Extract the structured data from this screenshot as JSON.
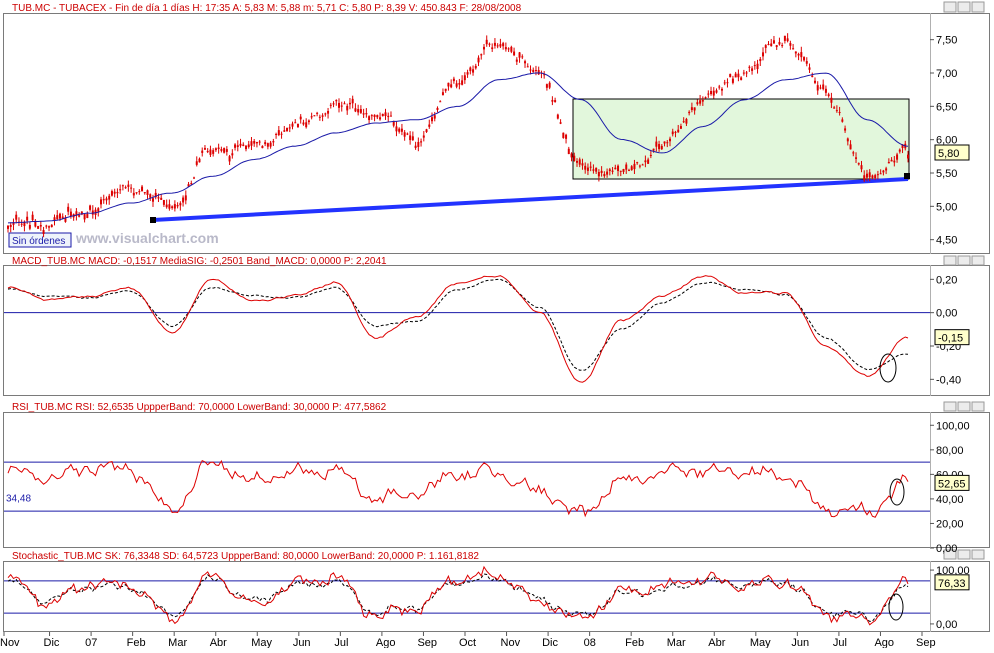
{
  "colors": {
    "price": "#dd0000",
    "mavg": "#1a1aa8",
    "trendline": "#2233ff",
    "box_fill": "#e2f7dc",
    "band": "#1a1aa8",
    "dashed": "#000000",
    "value_label_bg": "#ffffcc"
  },
  "panels": [
    {
      "id": "price",
      "header": "TUB.MC - TUBACEX - Fin de día 1 días  H: 17:35  A: 5,83  M: 5,88  m: 5,71  C: 5,80  P: 8,39  V: 450.843  F: 28/08/2008",
      "ticks": [
        "7,50",
        "7,00",
        "6,50",
        "6,00",
        "5,50",
        "5,00",
        "4,50"
      ],
      "current_label": "5,80",
      "sin_ordenes": "Sin órdenes",
      "watermark": "www.visualchart.com"
    },
    {
      "id": "macd",
      "header": "MACD_TUB.MC  MACD: -0,1517   MediaSIG: -0,2501   Band_MACD: 0,0000   P: 2,2041",
      "ticks": [
        "0,20",
        "0,00",
        "-0,20",
        "-0,40"
      ],
      "current_label": "-0,15"
    },
    {
      "id": "rsi",
      "header": "RSI_TUB.MC  RSI: 52,6535   UppperBand: 70,0000   LowerBand: 30,0000   P: 477,5862",
      "ticks": [
        "100,00",
        "80,00",
        "60,00",
        "40,00",
        "20,00",
        "0,00"
      ],
      "current_label": "52,65",
      "left_label": "34,48"
    },
    {
      "id": "stochastic",
      "header": "Stochastic_TUB.MC  SK: 76,3348   SD: 64,5723   UppperBand: 80,0000   LowerBand: 20,0000   P: 1.161,8182",
      "ticks": [
        "100,00",
        "0,00"
      ],
      "current_label": "76,33"
    }
  ],
  "x_labels": [
    "Nov",
    "Dic",
    "07",
    "Feb",
    "Mar",
    "Abr",
    "May",
    "Jun",
    "Jul",
    "Ago",
    "Sep",
    "Oct",
    "Nov",
    "Dic",
    "08",
    "Feb",
    "Mar",
    "Abr",
    "May",
    "Jun",
    "Jul",
    "Ago",
    "Sep"
  ],
  "chart_data": [
    {
      "type": "line",
      "title": "TUB.MC - TUBACEX",
      "x": [
        "Nov 2006",
        "Dic 2006",
        "Ene 2007",
        "Feb 2007",
        "Mar 2007",
        "Abr 2007",
        "May 2007",
        "Jun 2007",
        "Jul 2007",
        "Ago 2007",
        "Sep 2007",
        "Oct 2007",
        "Nov 2007",
        "Dic 2007",
        "Ene 2008",
        "Feb 2008",
        "Mar 2008",
        "Abr 2008",
        "May 2008",
        "Jun 2008",
        "Jul 2008",
        "Ago 2008",
        "28/08/2008"
      ],
      "series": [
        {
          "values": [
            4.7,
            4.75,
            4.95,
            5.3,
            5.0,
            5.85,
            5.9,
            6.2,
            6.5,
            6.4,
            6.0,
            6.9,
            7.45,
            7.0,
            5.6,
            5.5,
            5.9,
            6.6,
            7.05,
            7.5,
            6.7,
            5.45,
            5.8
          ]
        },
        {
          "values": [
            4.75,
            4.78,
            4.9,
            5.05,
            5.2,
            5.45,
            5.7,
            5.9,
            6.1,
            6.25,
            6.3,
            6.5,
            6.9,
            7.0,
            6.6,
            6.0,
            5.8,
            6.2,
            6.6,
            6.9,
            7.0,
            6.3,
            5.9
          ]
        }
      ],
      "ylim": [
        4.3,
        7.9
      ]
    },
    {
      "type": "line",
      "title": "MACD_TUB.MC",
      "series": [
        {
          "name": "MACD",
          "values": [
            0.15,
            0.08,
            0.1,
            0.15,
            -0.12,
            0.2,
            0.07,
            0.1,
            0.18,
            -0.15,
            -0.02,
            0.18,
            0.22,
            0.0,
            -0.42,
            -0.05,
            0.1,
            0.22,
            0.12,
            0.12,
            -0.2,
            -0.38,
            -0.15
          ]
        },
        {
          "name": "MediaSIG",
          "values": [
            0.14,
            0.1,
            0.09,
            0.13,
            -0.08,
            0.15,
            0.1,
            0.09,
            0.15,
            -0.08,
            -0.05,
            0.14,
            0.2,
            0.03,
            -0.35,
            -0.1,
            0.06,
            0.18,
            0.14,
            0.11,
            -0.15,
            -0.34,
            -0.25
          ]
        }
      ],
      "bands": [
        0
      ],
      "ylim": [
        -0.5,
        0.28
      ]
    },
    {
      "type": "line",
      "title": "RSI_TUB.MC",
      "series": [
        {
          "name": "RSI",
          "values": [
            62,
            58,
            66,
            64,
            30,
            70,
            55,
            62,
            63,
            40,
            45,
            60,
            62,
            45,
            28,
            55,
            60,
            64,
            62,
            60,
            32,
            30,
            52.65
          ]
        }
      ],
      "bands": [
        70,
        30
      ],
      "ylim": [
        0,
        110
      ]
    },
    {
      "type": "line",
      "title": "Stochastic_TUB.MC",
      "series": [
        {
          "name": "SK",
          "values": [
            80,
            40,
            75,
            70,
            10,
            90,
            35,
            75,
            85,
            15,
            30,
            85,
            90,
            40,
            10,
            60,
            70,
            85,
            70,
            80,
            20,
            10,
            76.33
          ]
        },
        {
          "name": "SD",
          "values": [
            75,
            45,
            70,
            68,
            15,
            85,
            40,
            70,
            80,
            20,
            32,
            80,
            85,
            45,
            15,
            55,
            65,
            80,
            72,
            78,
            25,
            12,
            64.57
          ]
        }
      ],
      "bands": [
        80,
        20
      ],
      "ylim": [
        -15,
        115
      ]
    }
  ]
}
